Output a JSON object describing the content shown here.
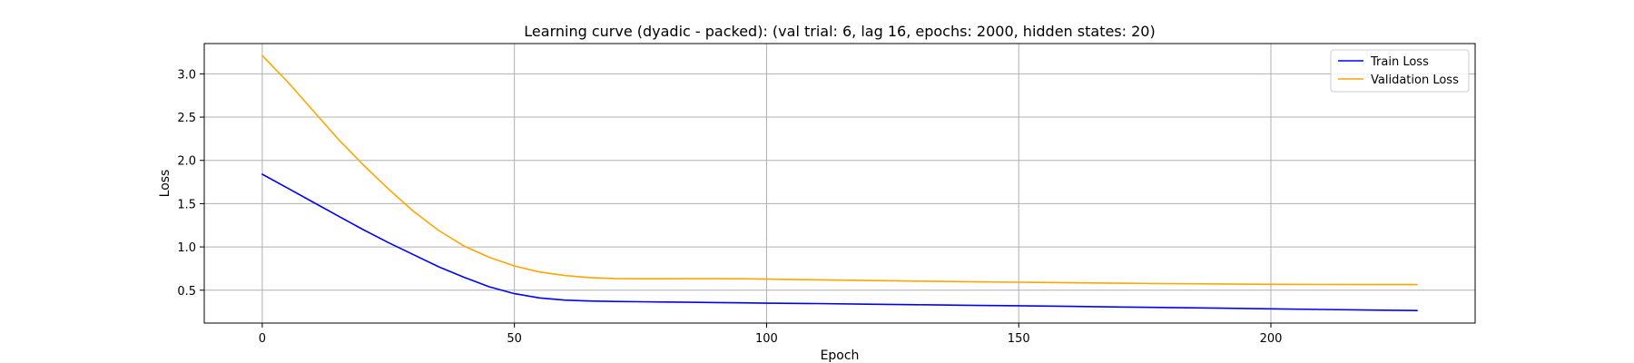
{
  "chart_data": {
    "type": "line",
    "title": "Learning curve (dyadic - packed): (val trial: 6, lag 16, epochs: 2000, hidden states: 20)",
    "xlabel": "Epoch",
    "ylabel": "Loss",
    "xlim": [
      -11.5,
      240.5
    ],
    "ylim": [
      0.12,
      3.35
    ],
    "xticks": [
      0,
      50,
      100,
      150,
      200
    ],
    "yticks": [
      0.5,
      1.0,
      1.5,
      2.0,
      2.5,
      3.0
    ],
    "ytick_labels": [
      "0.5",
      "1.0",
      "1.5",
      "2.0",
      "2.5",
      "3.0"
    ],
    "grid": true,
    "legend": "top-right",
    "x": [
      0,
      5,
      10,
      15,
      20,
      25,
      30,
      35,
      40,
      45,
      50,
      55,
      60,
      65,
      70,
      75,
      80,
      85,
      90,
      95,
      100,
      110,
      120,
      130,
      140,
      150,
      160,
      170,
      180,
      190,
      200,
      210,
      220,
      229
    ],
    "series": [
      {
        "name": "Train Loss",
        "color": "#0000ff",
        "values": [
          1.84,
          1.68,
          1.52,
          1.36,
          1.2,
          1.05,
          0.91,
          0.77,
          0.65,
          0.54,
          0.46,
          0.41,
          0.385,
          0.375,
          0.37,
          0.366,
          0.363,
          0.36,
          0.357,
          0.354,
          0.35,
          0.345,
          0.338,
          0.332,
          0.326,
          0.32,
          0.313,
          0.306,
          0.299,
          0.292,
          0.285,
          0.277,
          0.27,
          0.265
        ]
      },
      {
        "name": "Validation Loss",
        "color": "#ffa500",
        "values": [
          3.21,
          2.91,
          2.58,
          2.25,
          1.95,
          1.67,
          1.41,
          1.19,
          1.01,
          0.88,
          0.78,
          0.71,
          0.67,
          0.645,
          0.635,
          0.632,
          0.632,
          0.633,
          0.633,
          0.632,
          0.628,
          0.62,
          0.612,
          0.605,
          0.598,
          0.592,
          0.586,
          0.58,
          0.576,
          0.572,
          0.568,
          0.566,
          0.565,
          0.565
        ]
      }
    ]
  }
}
